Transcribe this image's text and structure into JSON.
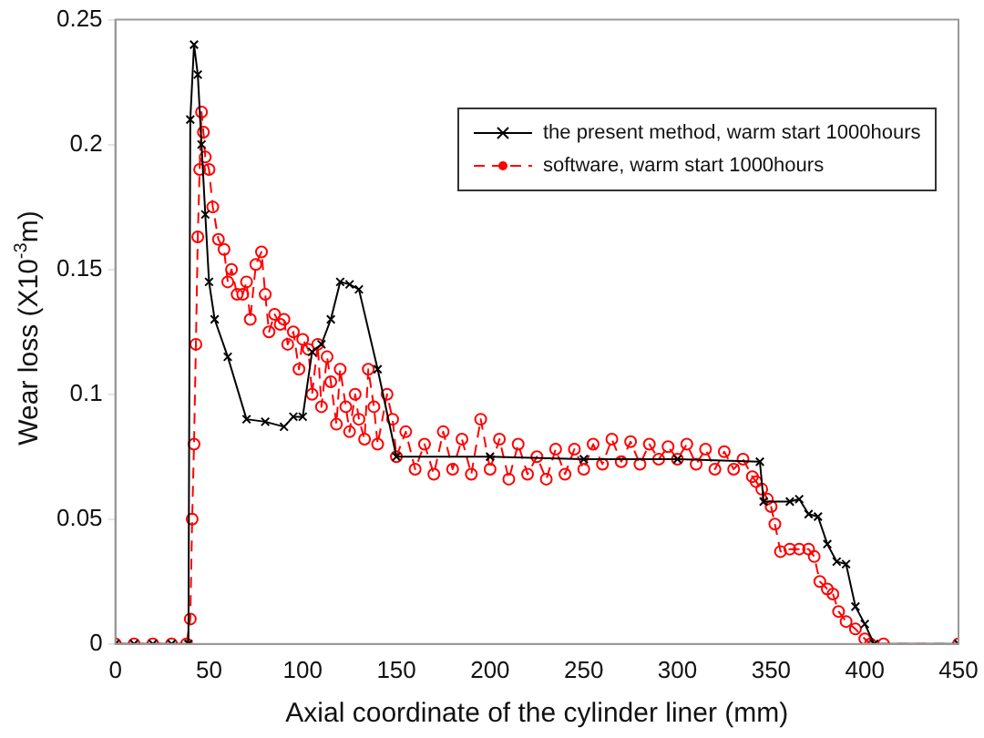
{
  "chart_data": {
    "type": "line",
    "xlabel": "Axial coordinate of the cylinder liner (mm)",
    "ylabel": "Wear loss (X10$^{-3}$m)",
    "xlim": [
      0,
      450
    ],
    "xticks": [
      0,
      50,
      100,
      150,
      200,
      250,
      300,
      350,
      400,
      450
    ],
    "ylim": [
      0,
      0.25
    ],
    "yticks": [
      0,
      0.05,
      0.1,
      0.15,
      0.2,
      0.25
    ],
    "grid": false,
    "legend": "top right",
    "series": [
      {
        "name": "the present method, warm start 1000hours",
        "color": "#000000",
        "marker": "cross",
        "line_style": "solid",
        "x": [
          0,
          10,
          20,
          30,
          39,
          40,
          42,
          44,
          46,
          48,
          50,
          53,
          60,
          70,
          80,
          90,
          95,
          100,
          105,
          110,
          115,
          120,
          125,
          130,
          140,
          150,
          200,
          250,
          300,
          344,
          346,
          360,
          365,
          370,
          375,
          380,
          385,
          390,
          395,
          400,
          405,
          450
        ],
        "values": [
          0,
          0,
          0,
          0,
          0,
          0.21,
          0.24,
          0.228,
          0.2,
          0.172,
          0.145,
          0.13,
          0.115,
          0.09,
          0.089,
          0.087,
          0.091,
          0.091,
          0.117,
          0.12,
          0.13,
          0.145,
          0.144,
          0.142,
          0.11,
          0.075,
          0.075,
          0.074,
          0.074,
          0.073,
          0.057,
          0.057,
          0.058,
          0.052,
          0.051,
          0.04,
          0.033,
          0.032,
          0.015,
          0.008,
          0,
          0
        ]
      },
      {
        "name": "software, warm start 1000hours",
        "color": "#ff0000",
        "marker": "circle",
        "line_style": "dashed",
        "x": [
          0,
          10,
          20,
          30,
          38,
          40,
          41,
          42,
          43,
          44,
          45,
          46,
          47,
          48,
          50,
          52,
          55,
          58,
          60,
          62,
          65,
          68,
          70,
          72,
          75,
          78,
          80,
          82,
          85,
          88,
          90,
          92,
          95,
          98,
          100,
          103,
          105,
          108,
          110,
          113,
          115,
          118,
          120,
          123,
          125,
          128,
          130,
          133,
          135,
          138,
          140,
          145,
          148,
          150,
          155,
          160,
          165,
          170,
          175,
          180,
          185,
          190,
          195,
          200,
          205,
          210,
          215,
          220,
          225,
          230,
          235,
          240,
          245,
          250,
          255,
          260,
          265,
          270,
          275,
          280,
          285,
          290,
          295,
          300,
          305,
          310,
          315,
          320,
          325,
          330,
          335,
          340,
          342,
          345,
          348,
          350,
          352,
          355,
          360,
          365,
          370,
          373,
          376,
          380,
          383,
          386,
          390,
          395,
          400,
          403,
          410,
          450
        ],
        "values": [
          0,
          0,
          0,
          0,
          0,
          0.01,
          0.05,
          0.08,
          0.12,
          0.163,
          0.19,
          0.213,
          0.205,
          0.195,
          0.19,
          0.175,
          0.162,
          0.158,
          0.145,
          0.15,
          0.14,
          0.14,
          0.145,
          0.13,
          0.152,
          0.157,
          0.14,
          0.125,
          0.132,
          0.128,
          0.13,
          0.12,
          0.125,
          0.11,
          0.122,
          0.118,
          0.1,
          0.12,
          0.095,
          0.115,
          0.105,
          0.088,
          0.11,
          0.095,
          0.085,
          0.1,
          0.09,
          0.082,
          0.11,
          0.095,
          0.08,
          0.1,
          0.09,
          0.075,
          0.085,
          0.07,
          0.08,
          0.068,
          0.085,
          0.07,
          0.082,
          0.068,
          0.09,
          0.07,
          0.082,
          0.066,
          0.08,
          0.068,
          0.075,
          0.066,
          0.078,
          0.068,
          0.078,
          0.07,
          0.08,
          0.072,
          0.082,
          0.073,
          0.081,
          0.072,
          0.08,
          0.074,
          0.079,
          0.074,
          0.08,
          0.072,
          0.078,
          0.07,
          0.077,
          0.07,
          0.074,
          0.067,
          0.065,
          0.062,
          0.058,
          0.055,
          0.048,
          0.037,
          0.038,
          0.038,
          0.038,
          0.035,
          0.025,
          0.022,
          0.02,
          0.013,
          0.009,
          0.006,
          0.002,
          0,
          0,
          0
        ]
      }
    ]
  }
}
